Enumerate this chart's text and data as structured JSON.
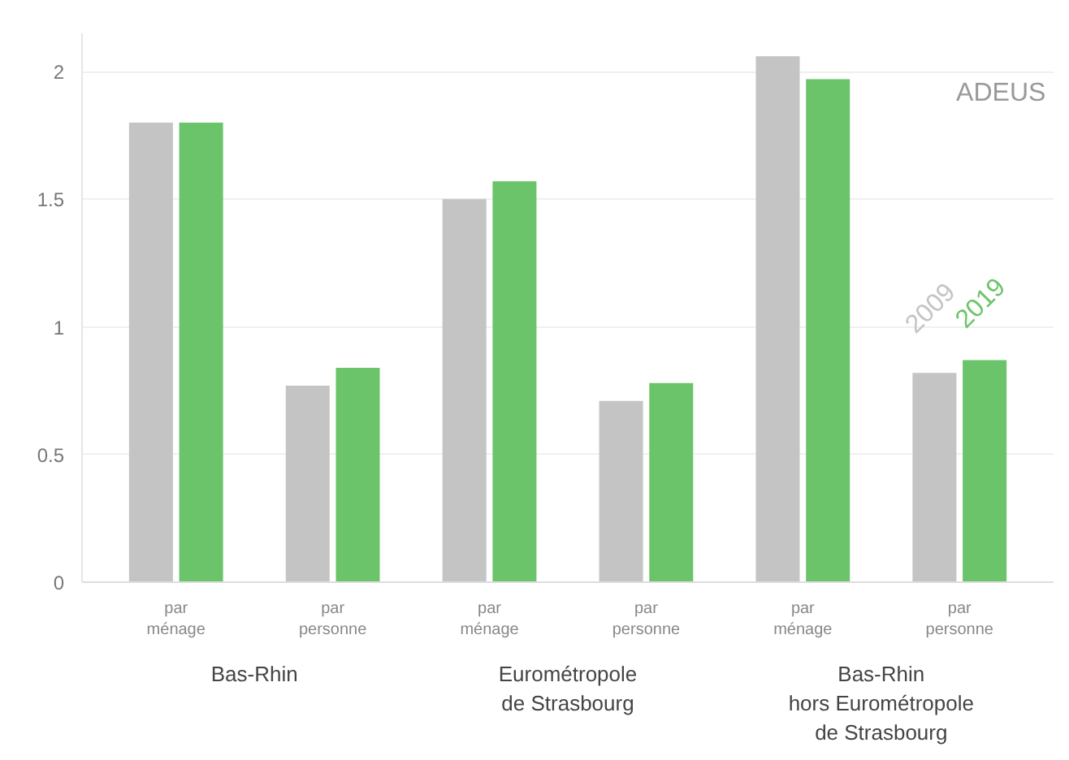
{
  "chart_data": {
    "type": "bar",
    "categories": [
      "par\nménage",
      "par\npersonne",
      "par\nménage",
      "par\npersonne",
      "par\nménage",
      "par\npersonne"
    ],
    "series": [
      {
        "name": "2009",
        "color": "#c4c4c4",
        "values": [
          1.8,
          0.77,
          1.5,
          0.71,
          2.06,
          0.82
        ]
      },
      {
        "name": "2019",
        "color": "#6cc46a",
        "values": [
          1.8,
          0.84,
          1.57,
          0.78,
          1.97,
          0.87
        ]
      }
    ],
    "ylim": [
      0,
      2.15
    ],
    "yticks": [
      0,
      0.5,
      1,
      1.5,
      2
    ],
    "grid": "y",
    "legend": "right",
    "annotations": [
      "Bas-Rhin",
      "Eurométropole\nde Strasbourg",
      "Bas-Rhin\nhors Eurométropole\nde Strasbourg",
      "ADEUS"
    ]
  }
}
